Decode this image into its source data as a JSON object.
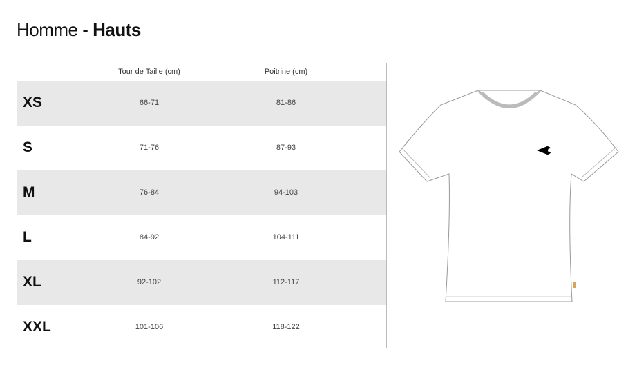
{
  "title": {
    "prefix": "Homme - ",
    "bold": "Hauts"
  },
  "table": {
    "headers": [
      "Tour de Taille (cm)",
      "Poitrine (cm)"
    ],
    "rows": [
      {
        "size": "XS",
        "waist": "66-71",
        "chest": "81-86"
      },
      {
        "size": "S",
        "waist": "71-76",
        "chest": "87-93"
      },
      {
        "size": "M",
        "waist": "76-84",
        "chest": "94-103"
      },
      {
        "size": "L",
        "waist": "84-92",
        "chest": "104-111"
      },
      {
        "size": "XL",
        "waist": "92-102",
        "chest": "112-117"
      },
      {
        "size": "XXL",
        "waist": "101-106",
        "chest": "118-122"
      }
    ]
  },
  "colors": {
    "row_alt": "#e8e8e8",
    "tag": "#d9a35a"
  }
}
